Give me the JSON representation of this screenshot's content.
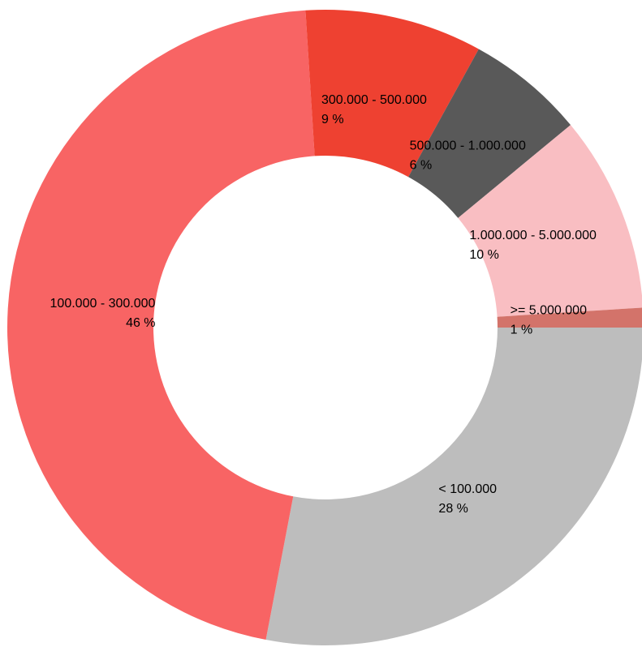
{
  "chart_data": {
    "type": "donut",
    "categories": [
      "< 100.000",
      "100.000 - 300.000",
      "300.000 - 500.000",
      "500.000 - 1.000.000",
      "1.000.000 - 5.000.000",
      ">= 5.000.000"
    ],
    "values": [
      28,
      46,
      9,
      6,
      10,
      1
    ],
    "value_labels": [
      "28 %",
      "46 %",
      "9 %",
      "6 %",
      "10 %",
      "1 %"
    ],
    "colors": [
      "#bdbdbd",
      "#f86464",
      "#ee4131",
      "#595959",
      "#f9bec2",
      "#d3736a"
    ]
  }
}
